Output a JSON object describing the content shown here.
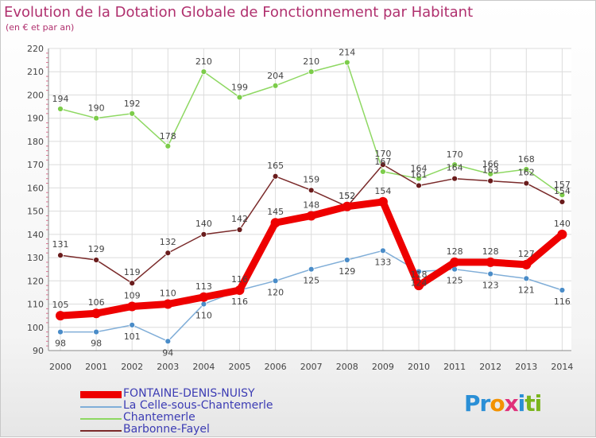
{
  "title": "Evolution de la Dotation Globale de Fonctionnement par Habitant",
  "subtitle": "(en € et par an)",
  "logo": {
    "text": "Proxiti",
    "letters": [
      "P",
      "r",
      "o",
      "x",
      "i",
      "t",
      "i"
    ],
    "letter_colors": [
      "#2a8fd6",
      "#2a8fd6",
      "#f39200",
      "#e0307a",
      "#2a8fd6",
      "#7ab51d",
      "#7ab51d"
    ]
  },
  "chart_data": {
    "type": "line",
    "categories": [
      "2000",
      "2001",
      "2002",
      "2003",
      "2004",
      "2005",
      "2006",
      "2007",
      "2008",
      "2009",
      "2010",
      "2011",
      "2012",
      "2013",
      "2014"
    ],
    "ylim": [
      90,
      220
    ],
    "yticks": [
      "90",
      "100",
      "110",
      "120",
      "130",
      "140",
      "150",
      "160",
      "170",
      "180",
      "190",
      "200",
      "210",
      "220"
    ],
    "grid": true,
    "legend_position": "bottom-left",
    "series": [
      {
        "name": "Chantemerle",
        "color": "#8ed862",
        "marker": "#7ccc4a",
        "emphasis": false,
        "values": [
          194,
          190,
          192,
          178,
          210,
          199,
          204,
          210,
          214,
          167,
          164,
          170,
          166,
          168,
          157
        ],
        "labels": [
          "194",
          "190",
          "192",
          "178",
          "210",
          "199",
          "204",
          "210",
          "214",
          "167",
          "164",
          "170",
          "166",
          "168",
          "157"
        ]
      },
      {
        "name": "La Celle-sous-Chantemerle",
        "color": "#80aed8",
        "marker": "#4a8cc8",
        "emphasis": false,
        "values": [
          98,
          98,
          101,
          94,
          110,
          116,
          120,
          125,
          129,
          133,
          124,
          125,
          123,
          121,
          116
        ],
        "labels": [
          "98",
          "98",
          "101",
          "94",
          "110",
          "116",
          "120",
          "125",
          "129",
          "133",
          "124",
          "125",
          "123",
          "121",
          "116"
        ]
      },
      {
        "name": "Barbonne-Fayel",
        "color": "#7a2a2a",
        "marker": "#6a1c1c",
        "emphasis": false,
        "values": [
          131,
          129,
          119,
          132,
          140,
          142,
          165,
          159,
          152,
          170,
          161,
          164,
          163,
          162,
          154
        ],
        "labels": [
          "131",
          "129",
          "119",
          "132",
          "140",
          "142",
          "165",
          "159",
          "152",
          "170",
          "161",
          "164",
          "163",
          "162",
          "154"
        ]
      },
      {
        "name": "FONTAINE-DENIS-NUISY",
        "color": "#ee0000",
        "marker": "#ee0000",
        "emphasis": true,
        "values": [
          105,
          106,
          109,
          110,
          113,
          116,
          145,
          148,
          152,
          154,
          118,
          128,
          128,
          127,
          140
        ],
        "labels": [
          "105",
          "106",
          "109",
          "110",
          "113",
          "116",
          "145",
          "148",
          "152",
          "154",
          "118",
          "128",
          "128",
          "127",
          "140"
        ]
      }
    ],
    "legend": [
      {
        "name": "FONTAINE-DENIS-NUISY",
        "color": "#ee0000",
        "thick": true
      },
      {
        "name": "La Celle-sous-Chantemerle",
        "color": "#80aed8",
        "thick": false
      },
      {
        "name": "Chantemerle",
        "color": "#8ed862",
        "thick": false
      },
      {
        "name": "Barbonne-Fayel",
        "color": "#7a2a2a",
        "thick": false
      }
    ]
  }
}
